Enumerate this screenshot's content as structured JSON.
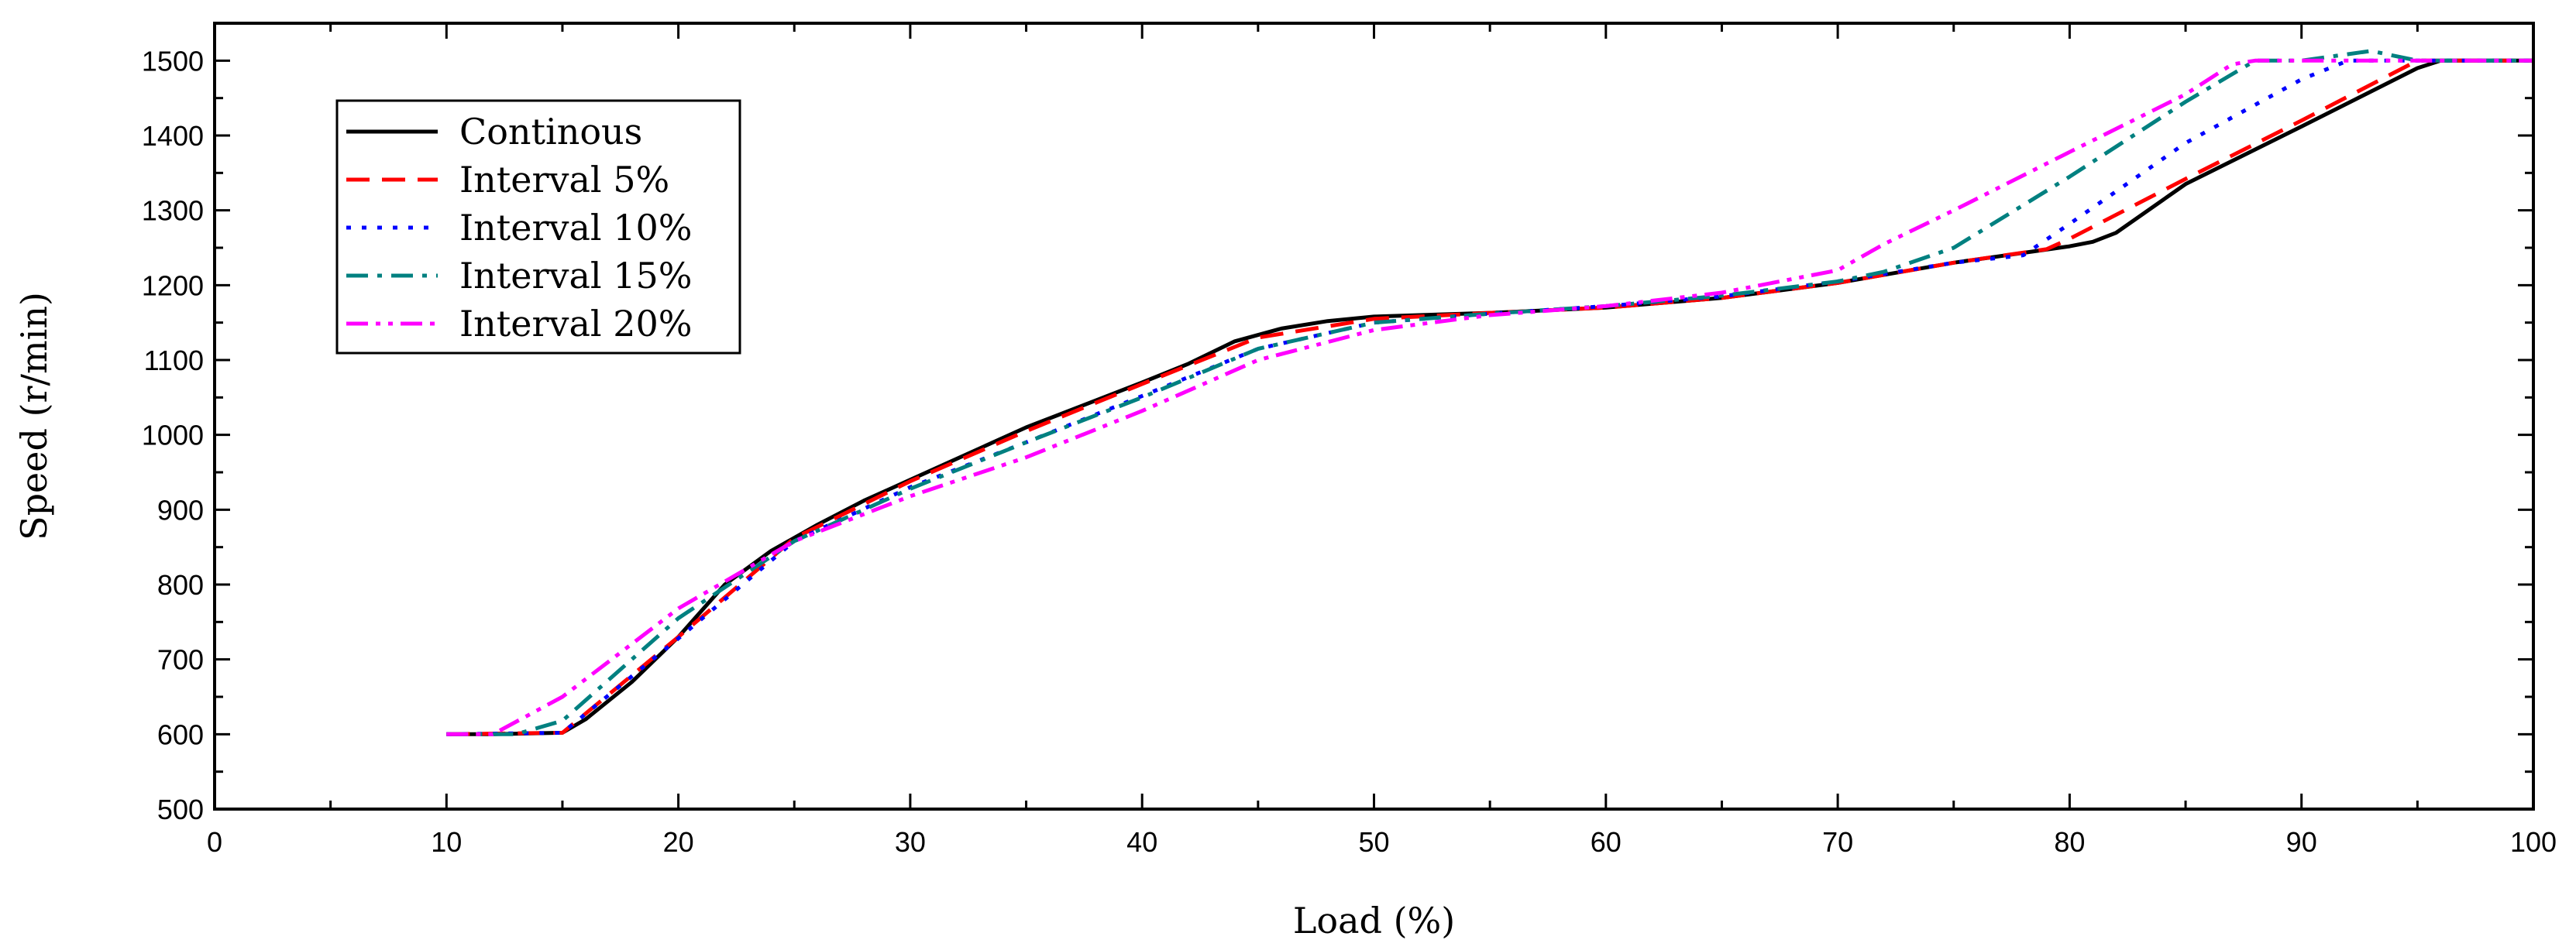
{
  "chart_data": {
    "type": "line",
    "xlabel": "Load (%)",
    "ylabel": "Speed (r/min)",
    "xlim": [
      0,
      100
    ],
    "ylim": [
      500,
      1550
    ],
    "xticks": [
      0,
      10,
      20,
      30,
      40,
      50,
      60,
      70,
      80,
      90,
      100
    ],
    "yticks": [
      500,
      600,
      700,
      800,
      900,
      1000,
      1100,
      1200,
      1300,
      1400,
      1500
    ],
    "legend_position": "top-left",
    "grid": false,
    "series": [
      {
        "name": "Continous",
        "color": "#000000",
        "dash": "solid",
        "x": [
          10,
          12,
          15,
          16,
          18,
          20,
          22,
          24,
          26,
          28,
          30,
          35,
          40,
          42,
          44,
          46,
          48,
          50,
          55,
          60,
          65,
          70,
          75,
          80,
          81,
          82,
          85,
          90,
          95,
          96,
          100
        ],
        "y": [
          600,
          600,
          602,
          620,
          670,
          730,
          800,
          845,
          880,
          912,
          940,
          1010,
          1070,
          1095,
          1125,
          1142,
          1152,
          1158,
          1163,
          1170,
          1183,
          1203,
          1230,
          1252,
          1258,
          1270,
          1335,
          1412,
          1490,
          1500,
          1500
        ]
      },
      {
        "name": "Interval 5%",
        "color": "#ff0000",
        "dash": "dash",
        "x": [
          10,
          15,
          20,
          25,
          30,
          35,
          40,
          45,
          50,
          55,
          60,
          65,
          70,
          75,
          79,
          80,
          85,
          90,
          95,
          100
        ],
        "y": [
          600,
          602,
          730,
          862,
          938,
          1005,
          1068,
          1130,
          1155,
          1163,
          1170,
          1183,
          1203,
          1230,
          1248,
          1262,
          1342,
          1420,
          1500,
          1500
        ]
      },
      {
        "name": "Interval 10%",
        "color": "#0000ff",
        "dash": "dot",
        "x": [
          10,
          15,
          20,
          25,
          30,
          35,
          40,
          45,
          50,
          55,
          60,
          65,
          70,
          75,
          78,
          80,
          85,
          90,
          92,
          100
        ],
        "y": [
          600,
          602,
          728,
          858,
          930,
          990,
          1052,
          1115,
          1150,
          1162,
          1172,
          1185,
          1205,
          1230,
          1240,
          1282,
          1390,
          1475,
          1500,
          1500
        ]
      },
      {
        "name": "Interval 15%",
        "color": "#008080",
        "dash": "dashdot",
        "x": [
          10,
          13,
          15,
          20,
          25,
          30,
          35,
          40,
          45,
          50,
          55,
          60,
          65,
          70,
          72,
          75,
          80,
          85,
          88,
          90,
          93,
          95,
          100
        ],
        "y": [
          600,
          600,
          618,
          755,
          858,
          928,
          990,
          1050,
          1115,
          1150,
          1162,
          1172,
          1186,
          1205,
          1218,
          1250,
          1345,
          1445,
          1500,
          1500,
          1513,
          1500,
          1500
        ]
      },
      {
        "name": "Interval 20%",
        "color": "#ff00ff",
        "dash": "dashdotdot",
        "x": [
          10,
          12,
          15,
          20,
          25,
          30,
          35,
          40,
          45,
          50,
          55,
          60,
          65,
          70,
          72,
          75,
          80,
          85,
          87,
          88,
          100
        ],
        "y": [
          600,
          600,
          650,
          768,
          858,
          918,
          970,
          1032,
          1100,
          1140,
          1160,
          1172,
          1190,
          1220,
          1255,
          1300,
          1378,
          1455,
          1495,
          1500,
          1500
        ]
      }
    ]
  }
}
